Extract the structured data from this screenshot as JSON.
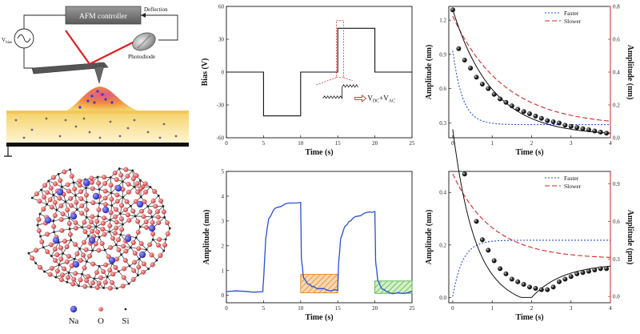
{
  "schematic": {
    "controller_label": "AFM controller",
    "deflection_label": "Deflection",
    "photodiode_label": "Photodiode",
    "vbias_main": "V",
    "vbias_sub": "bias"
  },
  "glass": {
    "legend": [
      {
        "label": "Na",
        "color": "#3a3ad0"
      },
      {
        "label": "O",
        "color": "#e05050"
      },
      {
        "label": "Si",
        "color": "#222222"
      }
    ]
  },
  "chart_data": [
    {
      "id": "bias",
      "type": "line",
      "xlabel": "Time (s)",
      "ylabel": "Bias (V)",
      "xlim": [
        0,
        25
      ],
      "ylim": [
        -60,
        60
      ],
      "xticks": [
        0,
        5,
        10,
        15,
        20,
        25
      ],
      "yticks": [
        -60,
        -30,
        0,
        30,
        60
      ],
      "series": [
        {
          "x": [
            0,
            5,
            5,
            10,
            10,
            15,
            15,
            20,
            20,
            25
          ],
          "y": [
            0,
            0,
            -40,
            -40,
            0,
            0,
            40,
            40,
            0,
            0
          ]
        }
      ],
      "annotation_main": "V",
      "annotation_sub1": "DC",
      "annotation_plus": "+V",
      "annotation_sub2": "AC"
    },
    {
      "id": "amplitude-response",
      "type": "line",
      "xlabel": "Time (s)",
      "ylabel": "Amplitude (nm)",
      "xlim": [
        0,
        25
      ],
      "ylim": [
        -0.3,
        5
      ],
      "xticks": [
        0,
        5,
        10,
        15,
        20,
        25
      ],
      "yticks": [
        0,
        1,
        2,
        3,
        4,
        5
      ],
      "series": [
        {
          "x": [
            0,
            4.9,
            5,
            5.3,
            5.7,
            6.5,
            8,
            10,
            10.1,
            10.4,
            11,
            12,
            13.5,
            15,
            15.1,
            15.4,
            16,
            17,
            18.5,
            20,
            20.1,
            20.4,
            21,
            22,
            23.5,
            25
          ],
          "y": [
            0.15,
            0.15,
            0.6,
            2.3,
            3.1,
            3.5,
            3.7,
            3.75,
            1.5,
            0.7,
            0.45,
            0.3,
            0.22,
            0.2,
            1.2,
            2.3,
            2.8,
            3.1,
            3.3,
            3.38,
            1.4,
            0.6,
            0.25,
            0.1,
            0.08,
            0.15
          ]
        }
      ],
      "highlights": [
        {
          "x0": 10,
          "x1": 15,
          "y0": 0.1,
          "y1": 0.85,
          "color": "#e08a2c"
        },
        {
          "x0": 20,
          "x1": 25,
          "y0": 0.08,
          "y1": 0.58,
          "color": "#5ab84a"
        }
      ]
    },
    {
      "id": "decay-top",
      "type": "scatter",
      "xlabel": "Time (s)",
      "ylabel": "Amplitude (nm)",
      "y2label": "Amplitude (nm)",
      "xlim": [
        -0.1,
        4
      ],
      "ylim": [
        0.17,
        1.32
      ],
      "y2lim": [
        0,
        0.8
      ],
      "xticks": [
        0,
        1,
        2,
        3,
        4
      ],
      "yticks": [
        0.3,
        0.6,
        0.9,
        1.2
      ],
      "y2ticks": [
        0.0,
        0.2,
        0.4,
        0.6,
        0.8
      ],
      "legend_position": "top-right",
      "points": {
        "x": [
          0,
          0.15,
          0.3,
          0.45,
          0.6,
          0.75,
          0.9,
          1.05,
          1.2,
          1.35,
          1.5,
          1.65,
          1.8,
          1.95,
          2.1,
          2.25,
          2.4,
          2.55,
          2.7,
          2.85,
          3.0,
          3.15,
          3.3,
          3.45,
          3.6,
          3.75,
          3.9
        ],
        "y": [
          1.29,
          0.95,
          0.85,
          0.78,
          0.7,
          0.64,
          0.6,
          0.55,
          0.51,
          0.48,
          0.45,
          0.42,
          0.4,
          0.38,
          0.36,
          0.34,
          0.32,
          0.31,
          0.3,
          0.28,
          0.27,
          0.26,
          0.25,
          0.24,
          0.23,
          0.22,
          0.21
        ]
      },
      "series": [
        {
          "name": "Faster",
          "axis": "right",
          "color": "#2a4fd0",
          "dash": "2,2",
          "a": 0.08,
          "b": 0.45,
          "tau": 0.25
        },
        {
          "name": "Slower",
          "axis": "right",
          "color": "#d02a2a",
          "dash": "6,3",
          "a": 0.07,
          "b": 0.67,
          "tau": 1.3
        }
      ]
    },
    {
      "id": "decay-bottom",
      "type": "scatter",
      "xlabel": "Time (s)",
      "ylabel": "Amplitude (nm)",
      "y2label": "Amplitude (pm)",
      "xlim": [
        -0.1,
        4
      ],
      "ylim": [
        -0.02,
        0.48
      ],
      "y2lim": [
        -0.05,
        1.0
      ],
      "xticks": [
        0,
        1,
        2,
        3,
        4
      ],
      "yticks": [
        0.0,
        0.2,
        0.4
      ],
      "y2ticks": [
        0.0,
        0.3,
        0.6,
        0.9
      ],
      "legend_position": "top-right",
      "points": {
        "x": [
          0.3,
          0.6,
          0.75,
          0.9,
          1.05,
          1.2,
          1.35,
          1.5,
          1.65,
          1.8,
          1.95,
          2.1,
          2.25,
          2.4,
          2.55,
          2.7,
          2.85,
          3.0,
          3.15,
          3.3,
          3.45,
          3.6,
          3.75,
          3.9
        ],
        "y": [
          0.47,
          0.29,
          0.22,
          0.18,
          0.14,
          0.11,
          0.09,
          0.07,
          0.06,
          0.05,
          0.04,
          0.035,
          0.03,
          0.03,
          0.04,
          0.06,
          0.07,
          0.08,
          0.09,
          0.095,
          0.1,
          0.105,
          0.11,
          0.11
        ]
      },
      "series": [
        {
          "name": "Faster",
          "axis": "right",
          "color": "#2a4fd0",
          "dash": "2,2"
        },
        {
          "name": "Slower",
          "axis": "right",
          "color": "#d02a2a",
          "dash": "6,3"
        }
      ]
    }
  ]
}
